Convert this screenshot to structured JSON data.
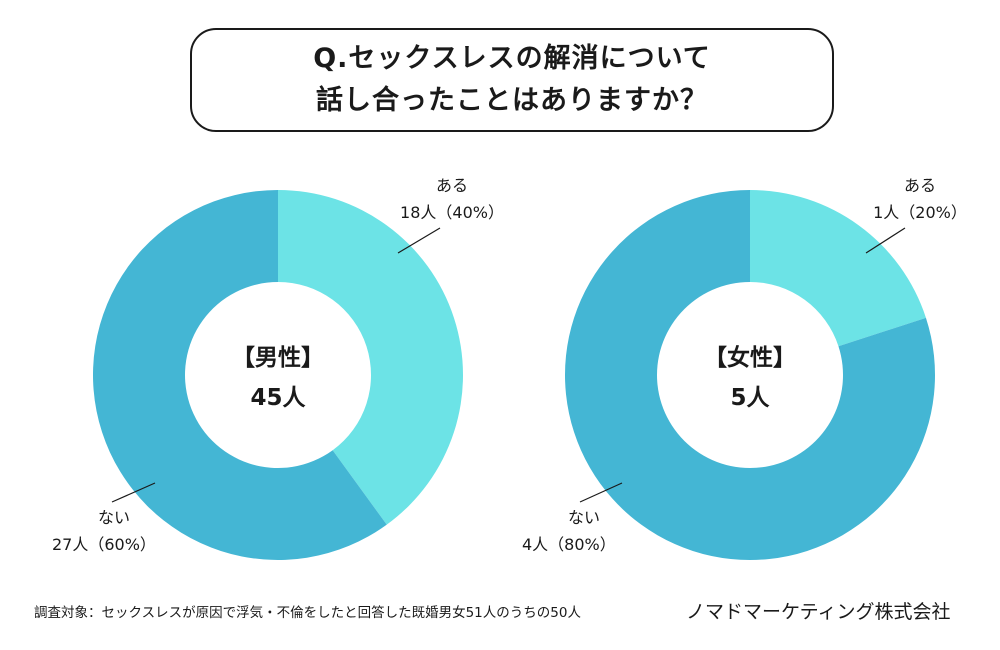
{
  "title": {
    "line1": "Q.セックスレスの解消について",
    "line2": "話し合ったことはありますか？"
  },
  "colors": {
    "yes": "#6ce3e6",
    "no": "#44b6d4",
    "text": "#1a1a1a"
  },
  "chart_data": [
    {
      "type": "pie",
      "donut": true,
      "center_label_1": "【男性】",
      "center_label_2": "45人",
      "slices": [
        {
          "label": "ある",
          "detail": "18人（40%）",
          "value": 18,
          "percent": 40
        },
        {
          "label": "ない",
          "detail": "27人（60%）",
          "value": 27,
          "percent": 60
        }
      ]
    },
    {
      "type": "pie",
      "donut": true,
      "center_label_1": "【女性】",
      "center_label_2": "5人",
      "slices": [
        {
          "label": "ある",
          "detail": "1人（20%）",
          "value": 1,
          "percent": 20
        },
        {
          "label": "ない",
          "detail": "4人（80%）",
          "value": 4,
          "percent": 80
        }
      ]
    }
  ],
  "footnote": "調査対象：セックスレスが原因で浮気・不倫をしたと回答した既婚男女51人のうちの50人",
  "company": "ノマドマーケティング株式会社"
}
